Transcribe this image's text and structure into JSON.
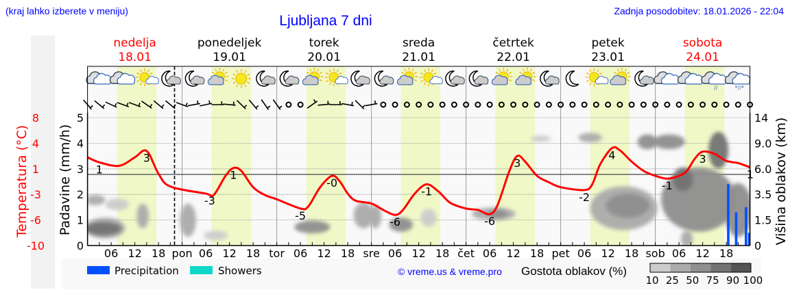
{
  "header": {
    "hint": "(kraj lahko izberete v meniju)",
    "title": "Ljubljana 7 dni",
    "updated": "Zadnja posodobitev: 18.01.2026 - 22:04"
  },
  "days": [
    {
      "name": "nedelja",
      "date": "18.01",
      "abbr": "",
      "weekend": true
    },
    {
      "name": "ponedeljek",
      "date": "19.01",
      "abbr": "pon",
      "weekend": false
    },
    {
      "name": "torek",
      "date": "20.01",
      "abbr": "tor",
      "weekend": false
    },
    {
      "name": "sreda",
      "date": "21.01",
      "abbr": "sre",
      "weekend": false
    },
    {
      "name": "četrtek",
      "date": "22.01",
      "abbr": "čet",
      "weekend": false
    },
    {
      "name": "petek",
      "date": "23.01",
      "abbr": "pet",
      "weekend": false
    },
    {
      "name": "sobota",
      "date": "24.01",
      "abbr": "sob",
      "weekend": true
    }
  ],
  "colors": {
    "temperature": "#ff0000",
    "precipitation": "#0050ff",
    "showers": "#10d8c8",
    "daylight": "#f0f8c8",
    "header_blue": "#0000ff",
    "weekend": "#ff0000"
  },
  "chart_data": {
    "type": "line",
    "now_marker": {
      "date": "18.01",
      "hour": 22.07
    },
    "hour_ticks": [
      "06",
      "12",
      "18"
    ],
    "daylight_hours": [
      7.5,
      17.5
    ],
    "axes": {
      "temperature": {
        "label": "Temperatura (°C)",
        "ticks": [
          "8",
          "4",
          "1",
          "-3",
          "-6",
          "-10"
        ],
        "range": [
          -10,
          8
        ]
      },
      "precipitation": {
        "label": "Padavine (mm/h)",
        "ticks": [
          "0",
          "1",
          "2",
          "3",
          "4",
          "5"
        ],
        "range": [
          0,
          5
        ]
      },
      "cloud_height": {
        "label": "Višina oblakov (km)",
        "ticks": [
          "0",
          "1.5",
          "3.5",
          "6.0",
          "9.0",
          "14"
        ]
      }
    },
    "temperature": [
      {
        "date": "18.01",
        "hour": 0,
        "t": 2.4
      },
      {
        "date": "18.01",
        "hour": 3,
        "t": 1.7
      },
      {
        "date": "18.01",
        "hour": 8,
        "t": 1.2
      },
      {
        "date": "18.01",
        "hour": 12,
        "t": 2.4
      },
      {
        "date": "18.01",
        "hour": 15,
        "t": 3.3
      },
      {
        "date": "18.01",
        "hour": 18,
        "t": 0.1
      },
      {
        "date": "18.01",
        "hour": 21,
        "t": -1.7
      },
      {
        "date": "19.01",
        "hour": 6,
        "t": -2.7
      },
      {
        "date": "19.01",
        "hour": 8,
        "t": -2.9
      },
      {
        "date": "19.01",
        "hour": 11,
        "t": -0.2
      },
      {
        "date": "19.01",
        "hour": 13,
        "t": 0.9
      },
      {
        "date": "19.01",
        "hour": 15,
        "t": 0.5
      },
      {
        "date": "19.01",
        "hour": 18,
        "t": -1.8
      },
      {
        "date": "19.01",
        "hour": 21,
        "t": -2.9
      },
      {
        "date": "20.01",
        "hour": 0,
        "t": -3.5
      },
      {
        "date": "20.01",
        "hour": 6,
        "t": -4.8
      },
      {
        "date": "20.01",
        "hour": 8,
        "t": -4.5
      },
      {
        "date": "20.01",
        "hour": 11,
        "t": -1.8
      },
      {
        "date": "20.01",
        "hour": 14,
        "t": -0.2
      },
      {
        "date": "20.01",
        "hour": 16,
        "t": -1.0
      },
      {
        "date": "20.01",
        "hour": 18,
        "t": -2.7
      },
      {
        "date": "20.01",
        "hour": 20,
        "t": -3.7
      },
      {
        "date": "21.01",
        "hour": 0,
        "t": -4.1
      },
      {
        "date": "21.01",
        "hour": 3,
        "t": -5.0
      },
      {
        "date": "21.01",
        "hour": 6,
        "t": -5.7
      },
      {
        "date": "21.01",
        "hour": 8,
        "t": -5.0
      },
      {
        "date": "21.01",
        "hour": 11,
        "t": -2.7
      },
      {
        "date": "21.01",
        "hour": 14,
        "t": -1.4
      },
      {
        "date": "21.01",
        "hour": 17,
        "t": -2.4
      },
      {
        "date": "21.01",
        "hour": 20,
        "t": -4.0
      },
      {
        "date": "22.01",
        "hour": 0,
        "t": -4.8
      },
      {
        "date": "22.01",
        "hour": 3,
        "t": -5.0
      },
      {
        "date": "22.01",
        "hour": 6,
        "t": -5.6
      },
      {
        "date": "22.01",
        "hour": 8,
        "t": -4.3
      },
      {
        "date": "22.01",
        "hour": 11,
        "t": 0.5
      },
      {
        "date": "22.01",
        "hour": 13,
        "t": 2.6
      },
      {
        "date": "22.01",
        "hour": 15,
        "t": 1.8
      },
      {
        "date": "22.01",
        "hour": 18,
        "t": -0.2
      },
      {
        "date": "22.01",
        "hour": 21,
        "t": -1.1
      },
      {
        "date": "23.01",
        "hour": 0,
        "t": -1.8
      },
      {
        "date": "23.01",
        "hour": 6,
        "t": -2.2
      },
      {
        "date": "23.01",
        "hour": 8,
        "t": -1.4
      },
      {
        "date": "23.01",
        "hour": 10,
        "t": 1.4
      },
      {
        "date": "23.01",
        "hour": 13,
        "t": 3.7
      },
      {
        "date": "23.01",
        "hour": 15,
        "t": 3.4
      },
      {
        "date": "23.01",
        "hour": 18,
        "t": 1.8
      },
      {
        "date": "23.01",
        "hour": 21,
        "t": 0.5
      },
      {
        "date": "24.01",
        "hour": 0,
        "t": -0.2
      },
      {
        "date": "24.01",
        "hour": 3,
        "t": -0.6
      },
      {
        "date": "24.01",
        "hour": 6,
        "t": -0.2
      },
      {
        "date": "24.01",
        "hour": 8,
        "t": 0.5
      },
      {
        "date": "24.01",
        "hour": 10,
        "t": 2.2
      },
      {
        "date": "24.01",
        "hour": 12,
        "t": 3.2
      },
      {
        "date": "24.01",
        "hour": 15,
        "t": 2.9
      },
      {
        "date": "24.01",
        "hour": 18,
        "t": 1.9
      },
      {
        "date": "24.01",
        "hour": 21,
        "t": 1.6
      },
      {
        "date": "24.01",
        "hour": 24,
        "t": 1.0
      }
    ],
    "temperature_labels": [
      {
        "date": "18.01",
        "hour": 3,
        "text": "1"
      },
      {
        "date": "18.01",
        "hour": 15,
        "text": "3"
      },
      {
        "date": "19.01",
        "hour": 7,
        "text": "-3"
      },
      {
        "date": "19.01",
        "hour": 13,
        "text": "1"
      },
      {
        "date": "20.01",
        "hour": 6,
        "text": "-5"
      },
      {
        "date": "20.01",
        "hour": 14,
        "text": "-0"
      },
      {
        "date": "21.01",
        "hour": 6,
        "text": "-6"
      },
      {
        "date": "21.01",
        "hour": 14,
        "text": "-1"
      },
      {
        "date": "22.01",
        "hour": 6,
        "text": "-6"
      },
      {
        "date": "22.01",
        "hour": 13,
        "text": "3"
      },
      {
        "date": "23.01",
        "hour": 6,
        "text": "-2"
      },
      {
        "date": "23.01",
        "hour": 13,
        "text": "4"
      },
      {
        "date": "24.01",
        "hour": 3,
        "text": "-1"
      },
      {
        "date": "24.01",
        "hour": 12,
        "text": "3"
      },
      {
        "date": "24.01",
        "hour": 24,
        "text": "1"
      }
    ],
    "precipitation": [
      {
        "date": "24.01",
        "hour": 18.5,
        "mm": 2.4
      },
      {
        "date": "24.01",
        "hour": 20.5,
        "mm": 1.3
      },
      {
        "date": "24.01",
        "hour": 23,
        "mm": 1.5
      },
      {
        "date": "24.01",
        "hour": 23.8,
        "mm": 0.5
      }
    ],
    "cloud_cover": [
      {
        "date": "18.01",
        "from": 0,
        "to": 9,
        "km": [
          0.5,
          1.6
        ],
        "density": 50
      },
      {
        "date": "18.01",
        "from": 0,
        "to": 8,
        "km": [
          0.7,
          1.3
        ],
        "density": 90
      },
      {
        "date": "18.01",
        "from": 0,
        "to": 4,
        "km": [
          2.8,
          3.4
        ],
        "density": 50
      },
      {
        "date": "18.01",
        "from": 5,
        "to": 10,
        "km": [
          2.4,
          3.1
        ],
        "density": 25
      },
      {
        "date": "18.01",
        "from": 13,
        "to": 15,
        "km": [
          1.1,
          2.7
        ],
        "density": 50
      },
      {
        "date": "19.01",
        "from": 0,
        "to": 3,
        "km": [
          0.6,
          2.7
        ],
        "density": 50
      },
      {
        "date": "19.01",
        "from": 6,
        "to": 11,
        "km": [
          0.4,
          0.8
        ],
        "density": 25
      },
      {
        "date": "20.01",
        "from": 5,
        "to": 13,
        "km": [
          0.8,
          1.4
        ],
        "density": 75
      },
      {
        "date": "20.01",
        "from": 20,
        "to": 24,
        "km": [
          1.1,
          2.8
        ],
        "density": 50
      },
      {
        "date": "21.01",
        "from": 0,
        "to": 2,
        "km": [
          1.1,
          2.6
        ],
        "density": 50
      },
      {
        "date": "21.01",
        "from": 5,
        "to": 10,
        "km": [
          0.9,
          1.6
        ],
        "density": 75
      },
      {
        "date": "21.01",
        "from": 13,
        "to": 16,
        "km": [
          1.2,
          2.3
        ],
        "density": 25
      },
      {
        "date": "22.01",
        "from": 2,
        "to": 12,
        "km": [
          1.6,
          2.4
        ],
        "density": 50
      },
      {
        "date": "22.01",
        "from": 6,
        "to": 10,
        "km": [
          1.8,
          2.2
        ],
        "density": 75
      },
      {
        "date": "22.01",
        "from": 17,
        "to": 21,
        "km": [
          9.6,
          10.3
        ],
        "density": 25
      },
      {
        "date": "23.01",
        "from": 5,
        "to": 10,
        "km": [
          9.5,
          10.8
        ],
        "density": 50
      },
      {
        "date": "23.01",
        "from": 8,
        "to": 24,
        "km": [
          1.0,
          4.2
        ],
        "density": 50
      },
      {
        "date": "23.01",
        "from": 12,
        "to": 22,
        "km": [
          1.8,
          3.5
        ],
        "density": 75
      },
      {
        "date": "23.01",
        "from": 20,
        "to": 24,
        "km": [
          8.5,
          10.5
        ],
        "density": 75
      },
      {
        "date": "24.01",
        "from": 0,
        "to": 7,
        "km": [
          8.5,
          10.5
        ],
        "density": 75
      },
      {
        "date": "24.01",
        "from": 2,
        "to": 20,
        "km": [
          0.9,
          6.0
        ],
        "density": 75
      },
      {
        "date": "24.01",
        "from": 5,
        "to": 9,
        "km": [
          4.0,
          6.0
        ],
        "density": 90
      },
      {
        "date": "24.01",
        "from": 14,
        "to": 18,
        "km": [
          6.2,
          11.0
        ],
        "density": 90
      },
      {
        "date": "24.01",
        "from": 18,
        "to": 24,
        "km": [
          0.6,
          4.5
        ],
        "density": 75
      },
      {
        "date": "24.01",
        "from": 7,
        "to": 9,
        "km": [
          0.0,
          0.8
        ],
        "density": 50
      }
    ],
    "weather_icons": [
      "cloudy",
      "cloudy",
      "sun-small-cloud",
      "moon-cloud",
      "moon-cloud",
      "partly-cloudy",
      "sun",
      "moon-cloud",
      "moon-cloud",
      "partly-cloudy",
      "sun-small-cloud",
      "moon-cloud",
      "moon-cloud",
      "partly-cloudy",
      "sun-small-cloud",
      "moon-cloud",
      "moon-cloud",
      "partly-cloudy",
      "partly-cloudy",
      "moon-cloud",
      "moon",
      "sun-small-cloud",
      "partly-cloudy",
      "moon-cloud",
      "cloudy",
      "cloudy",
      "cloudy-rain",
      "cloudy-rain-snow"
    ],
    "wind": [
      {
        "calm": false,
        "angle": 50
      },
      {
        "calm": false,
        "angle": 40
      },
      {
        "calm": false,
        "angle": 25
      },
      {
        "calm": false,
        "angle": 20
      },
      {
        "calm": false,
        "angle": 20
      },
      {
        "calm": false,
        "angle": 35
      },
      {
        "calm": false,
        "angle": 40
      },
      {
        "calm": false,
        "angle": 40
      },
      {
        "calm": false,
        "angle": 20
      },
      {
        "calm": false,
        "angle": -10
      },
      {
        "calm": false,
        "angle": -12
      },
      {
        "calm": false,
        "angle": 0
      },
      {
        "calm": false,
        "angle": 5
      },
      {
        "calm": false,
        "angle": 45
      },
      {
        "calm": false,
        "angle": 50
      },
      {
        "calm": false,
        "angle": 55
      },
      {
        "calm": false,
        "angle": 55
      },
      {
        "calm": true
      },
      {
        "calm": true
      },
      {
        "calm": false,
        "angle": -35
      },
      {
        "calm": false,
        "angle": -5
      },
      {
        "calm": false,
        "angle": 0
      },
      {
        "calm": false,
        "angle": 10
      },
      {
        "calm": false,
        "angle": 45
      },
      {
        "calm": false,
        "angle": -10
      },
      {
        "calm": true
      },
      {
        "calm": true
      },
      {
        "calm": true
      },
      {
        "calm": true
      },
      {
        "calm": true
      },
      {
        "calm": true
      },
      {
        "calm": true
      },
      {
        "calm": true
      },
      {
        "calm": true
      },
      {
        "calm": true
      },
      {
        "calm": true
      },
      {
        "calm": true
      },
      {
        "calm": true
      },
      {
        "calm": true
      },
      {
        "calm": true
      },
      {
        "calm": true
      },
      {
        "calm": true
      },
      {
        "calm": true
      },
      {
        "calm": true
      },
      {
        "calm": true
      },
      {
        "calm": true
      },
      {
        "calm": true
      },
      {
        "calm": true
      },
      {
        "calm": true
      },
      {
        "calm": true
      },
      {
        "calm": true
      },
      {
        "calm": true
      },
      {
        "calm": true
      },
      {
        "calm": true
      },
      {
        "calm": true
      },
      {
        "calm": true
      },
      {
        "calm": true
      }
    ]
  },
  "legend": {
    "precipitation": "Precipitation",
    "showers": "Showers",
    "copyright": "© vreme.us & vreme.pro",
    "cloud_density_title": "Gostota oblakov (%)",
    "cloud_density_levels": [
      "10",
      "25",
      "50",
      "75",
      "90",
      "100"
    ],
    "cloud_density_colors": [
      "#cccccc",
      "#ababab",
      "#8f8f8f",
      "#727272",
      "#555555"
    ]
  }
}
